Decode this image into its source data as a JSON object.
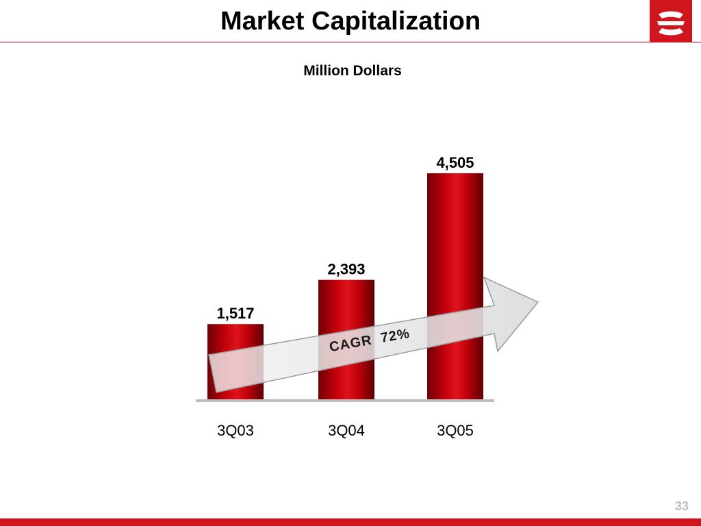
{
  "slide": {
    "title": "Market Capitalization",
    "page_number": "33"
  },
  "chart_data": {
    "type": "bar",
    "title": "",
    "subtitle": "Million Dollars",
    "categories": [
      "3Q03",
      "3Q04",
      "3Q05"
    ],
    "values": [
      1517,
      2393,
      4505
    ],
    "value_labels": [
      "1,517",
      "2,393",
      "4,505"
    ],
    "xlabel": "",
    "ylabel": "",
    "ylim": [
      0,
      4505
    ],
    "grid": false,
    "legend": "none",
    "bar_color": "#c8000a",
    "annotation": {
      "text": "CAGR  72%",
      "shape": "arrow"
    }
  },
  "colors": {
    "accent": "#d0151c",
    "rule": "#c0000f",
    "axis": "#bdbdbd"
  },
  "icons": {
    "logo": "brand-logo-icon"
  }
}
